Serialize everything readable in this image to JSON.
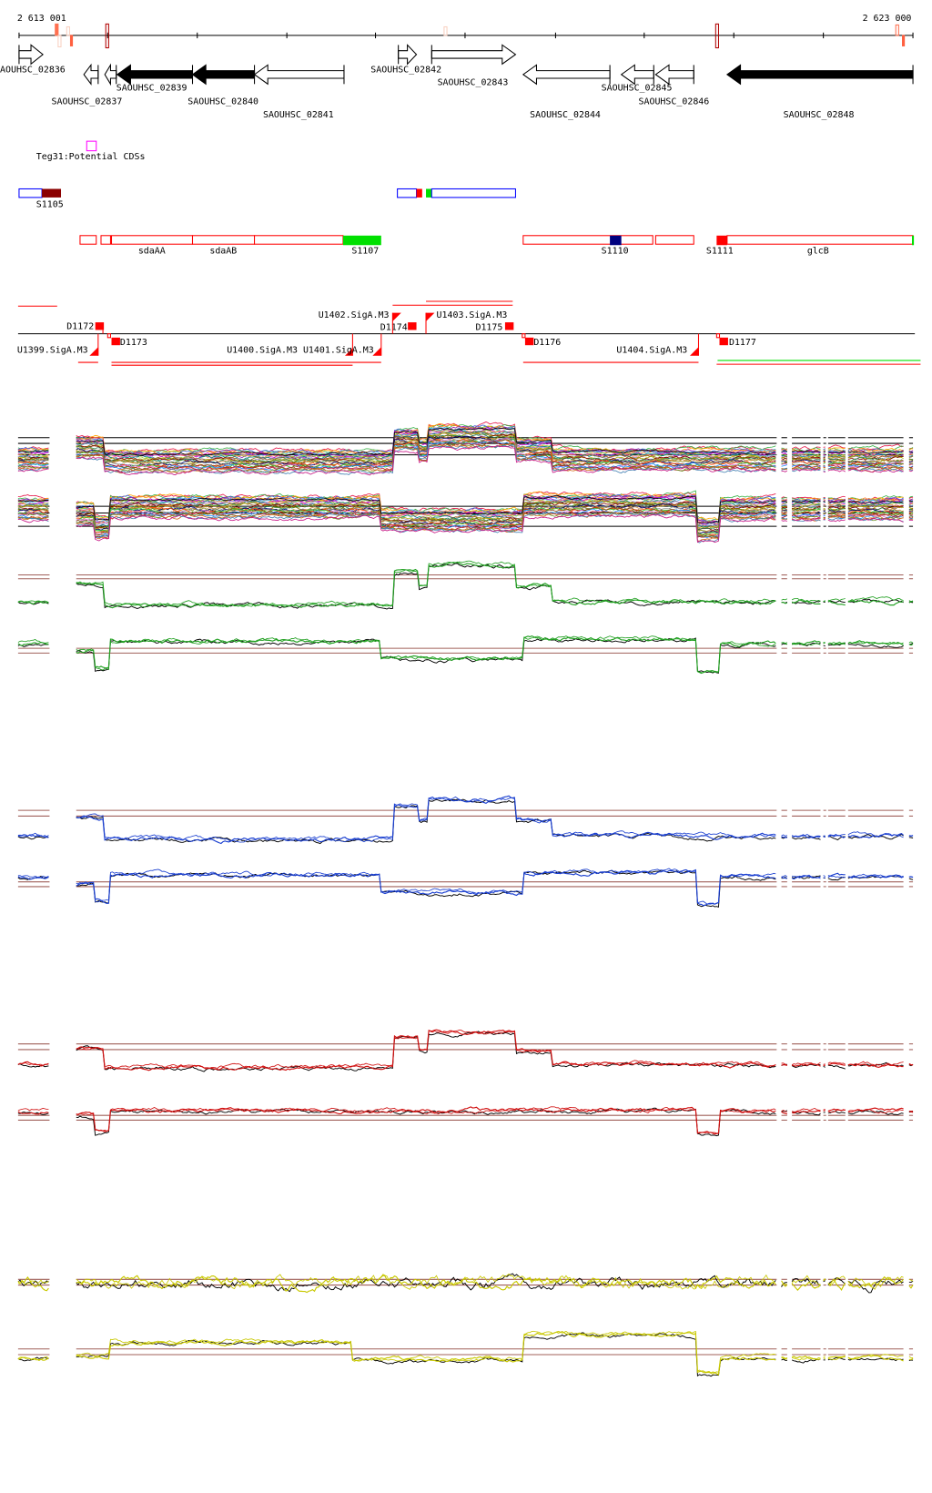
{
  "axis": {
    "start_label": "2 613 001",
    "end_label": "2 623 000"
  },
  "genes": [
    {
      "name": "AOUHSC_02836",
      "strand": "+",
      "fill": "white"
    },
    {
      "name": "SAOUHSC_02837",
      "strand": "-",
      "fill": "white"
    },
    {
      "name": "",
      "strand": "-",
      "fill": "white"
    },
    {
      "name": "SAOUHSC_02839",
      "strand": "-",
      "fill": "black"
    },
    {
      "name": "SAOUHSC_02840",
      "strand": "-",
      "fill": "black"
    },
    {
      "name": "SAOUHSC_02841",
      "strand": "-",
      "fill": "white"
    },
    {
      "name": "SAOUHSC_02842",
      "strand": "+",
      "fill": "white"
    },
    {
      "name": "SAOUHSC_02843",
      "strand": "+",
      "fill": "white"
    },
    {
      "name": "SAOUHSC_02844",
      "strand": "-",
      "fill": "white"
    },
    {
      "name": "SAOUHSC_02845",
      "strand": "-",
      "fill": "white"
    },
    {
      "name": "SAOUHSC_02846",
      "strand": "-",
      "fill": "white"
    },
    {
      "name": "SAOUHSC_02848",
      "strand": "-",
      "fill": "black"
    }
  ],
  "teg": {
    "label": "Teg31:Potential CDSs",
    "color": "#ff00ff"
  },
  "srna_row": {
    "labels": [
      "S1105"
    ]
  },
  "operon_row": {
    "labels": [
      "sdaAA",
      "sdaAB",
      "S1107",
      "S1110",
      "S1111",
      "glcB"
    ]
  },
  "promoter_row": {
    "labels": [
      "D1172",
      "U1399.SigA.M3",
      "D1173",
      "U1400.SigA.M3",
      "U1401.SigA.M3",
      "D1174",
      "U1402.SigA.M3",
      "U1403.SigA.M3",
      "D1175",
      "D1176",
      "U1404.SigA.M3",
      "D1177"
    ]
  },
  "colors": {
    "feature_red": "#ff0000",
    "feature_blue": "#0000ff",
    "feature_green": "#00e000",
    "dark_red": "#8b0000",
    "navy": "#00007f",
    "ref_line": "#a0605a"
  },
  "tracks": [
    {
      "name": "multi-condition-plus",
      "color": "multi"
    },
    {
      "name": "multi-condition-minus",
      "color": "multi"
    },
    {
      "name": "green-plus",
      "color": "#22a022"
    },
    {
      "name": "green-minus",
      "color": "#22a022"
    },
    {
      "name": "blue-plus",
      "color": "#1a3fd0"
    },
    {
      "name": "blue-minus",
      "color": "#1a3fd0"
    },
    {
      "name": "red-plus",
      "color": "#d01010"
    },
    {
      "name": "red-minus",
      "color": "#d01010"
    },
    {
      "name": "yellow-plus",
      "color": "#c8c800"
    },
    {
      "name": "yellow-minus",
      "color": "#c8c800"
    }
  ]
}
